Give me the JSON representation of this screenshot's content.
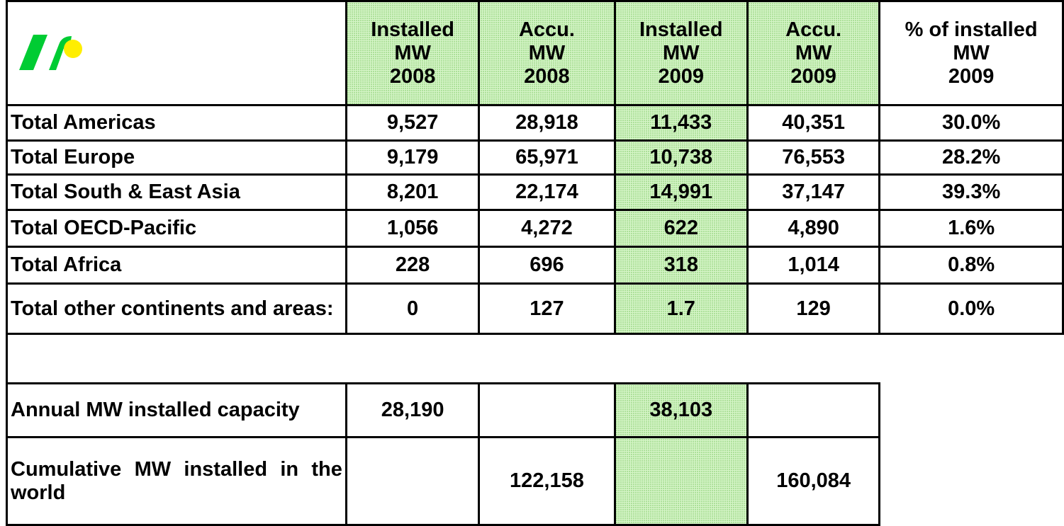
{
  "table": {
    "headers": [
      [
        "Installed",
        "MW",
        "2008"
      ],
      [
        "Accu.",
        "MW",
        "2008"
      ],
      [
        "Installed",
        "MW",
        "2009"
      ],
      [
        "Accu.",
        "MW",
        "2009"
      ],
      [
        "% of installed",
        "MW",
        "2009"
      ]
    ],
    "rows": [
      {
        "label": "Total Americas",
        "values": [
          "9,527",
          "28,918",
          "11,433",
          "40,351",
          "30.0%"
        ]
      },
      {
        "label": "Total Europe",
        "values": [
          "9,179",
          "65,971",
          "10,738",
          "76,553",
          "28.2%"
        ]
      },
      {
        "label": "Total South & East Asia",
        "values": [
          "8,201",
          "22,174",
          "14,991",
          "37,147",
          "39.3%"
        ]
      },
      {
        "label": "Total OECD-Pacific",
        "values": [
          "1,056",
          "4,272",
          "622",
          "4,890",
          "1.6%"
        ]
      },
      {
        "label": "Total Africa",
        "values": [
          "228",
          "696",
          "318",
          "1,014",
          "0.8%"
        ]
      },
      {
        "label": "Total other continents and areas:",
        "values": [
          "0",
          "127",
          "1.7",
          "129",
          "0.0%"
        ]
      }
    ],
    "annual": {
      "label": "Annual MW installed capacity",
      "installed_2008": "28,190",
      "installed_2009": "38,103"
    },
    "cumulative": {
      "label": "Cumulative MW installed in the world",
      "accu_2008": "122,158",
      "accu_2009": "160,084"
    }
  }
}
